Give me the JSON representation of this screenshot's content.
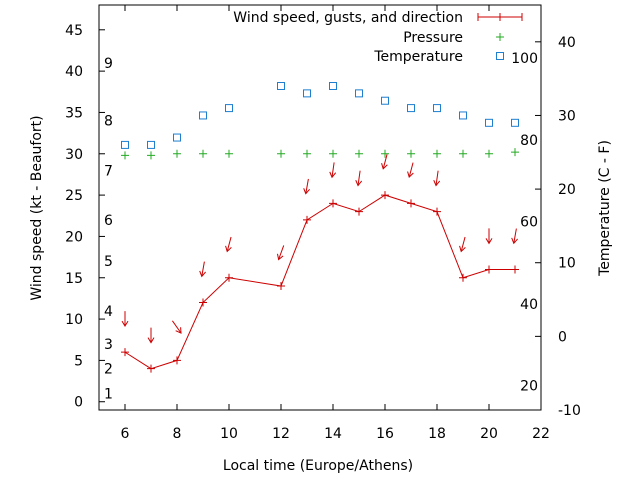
{
  "chart_data": {
    "type": "line",
    "xlabel": "Local time (Europe/Athens)",
    "ylabel": "Wind speed (kt - Beaufort)",
    "y2label": "Temperature (C - F)",
    "xlim": [
      5,
      22
    ],
    "ylim": [
      -1,
      48
    ],
    "y2lim": [
      -10,
      45
    ],
    "x_ticks": [
      "6",
      "8",
      "10",
      "12",
      "14",
      "16",
      "18",
      "20",
      "22"
    ],
    "y_ticks": [
      "0",
      "5",
      "10",
      "15",
      "20",
      "25",
      "30",
      "35",
      "40",
      "45"
    ],
    "y2_ticks": [
      "-10",
      "0",
      "10",
      "20",
      "30",
      "40"
    ],
    "beaufort_labels": [
      {
        "label": "1",
        "y": 1
      },
      {
        "label": "2",
        "y": 4
      },
      {
        "label": "3",
        "y": 7
      },
      {
        "label": "4",
        "y": 11
      },
      {
        "label": "5",
        "y": 17
      },
      {
        "label": "6",
        "y": 22
      },
      {
        "label": "7",
        "y": 28
      },
      {
        "label": "8",
        "y": 34
      },
      {
        "label": "9",
        "y": 41
      }
    ],
    "fahrenheit_labels": [
      {
        "label": "20",
        "y2": -6.7
      },
      {
        "label": "40",
        "y2": 4.4
      },
      {
        "label": "60",
        "y2": 15.6
      },
      {
        "label": "80",
        "y2": 26.7
      },
      {
        "label": "100",
        "y2": 37.8
      }
    ],
    "legend_position": "top-right",
    "series": [
      {
        "name": "Wind speed, gusts, and direction",
        "color": "#cc0000",
        "marker": "plus-line",
        "x": [
          6,
          7,
          8,
          9,
          10,
          12,
          13,
          14,
          15,
          16,
          17,
          18,
          19,
          20,
          21
        ],
        "values": [
          6,
          4,
          5,
          12,
          15,
          14,
          22,
          24,
          23,
          25,
          24,
          23,
          15,
          16,
          16
        ]
      },
      {
        "name": "Pressure",
        "color": "#22aa22",
        "marker": "plus",
        "x": [
          6,
          7,
          8,
          9,
          10,
          12,
          13,
          14,
          15,
          16,
          17,
          18,
          19,
          20,
          21
        ],
        "values": [
          29.8,
          29.8,
          30,
          30,
          30,
          30,
          30,
          30,
          30,
          30,
          30,
          30,
          30,
          30,
          30.2
        ]
      },
      {
        "name": "Temperature",
        "color": "#1e7fd0",
        "marker": "square",
        "axis": "y2",
        "x": [
          6,
          7,
          8,
          9,
          10,
          12,
          13,
          14,
          15,
          16,
          17,
          18,
          19,
          20,
          21
        ],
        "values": [
          26,
          26,
          27,
          30,
          31,
          34,
          33,
          34,
          33,
          32,
          31,
          31,
          30,
          29,
          29
        ]
      }
    ],
    "wind_arrows": {
      "color": "#cc0000",
      "x": [
        6,
        7,
        8,
        9,
        10,
        12,
        13,
        14,
        15,
        16,
        17,
        18,
        19,
        20,
        21
      ],
      "values": [
        10,
        8,
        9,
        16,
        19,
        18,
        26,
        28,
        27,
        29,
        28,
        27,
        19,
        20,
        20
      ],
      "direction_deg": [
        0,
        0,
        325,
        10,
        15,
        20,
        10,
        8,
        8,
        15,
        15,
        8,
        15,
        0,
        10
      ]
    }
  }
}
